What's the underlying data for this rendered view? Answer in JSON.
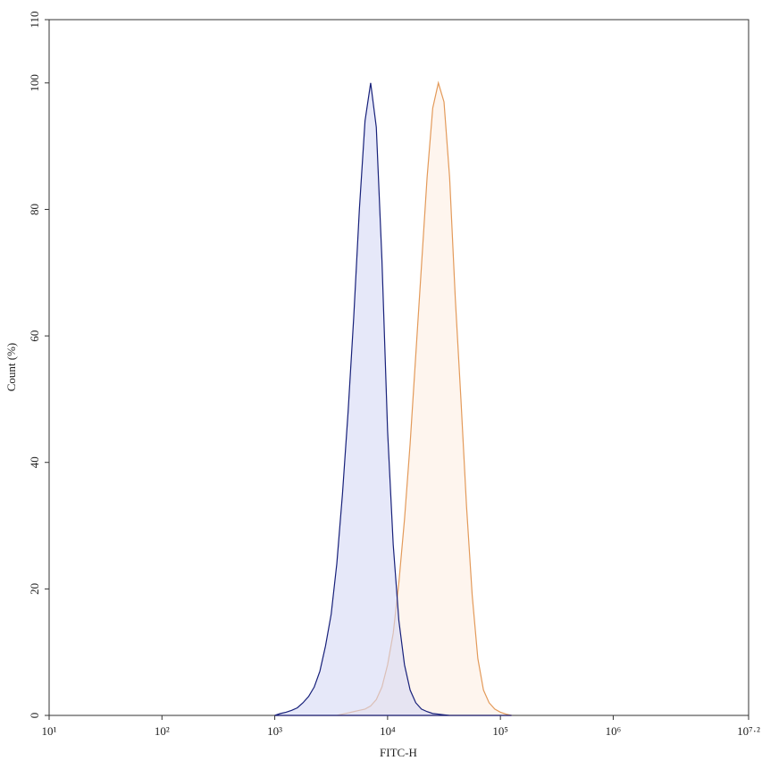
{
  "chart_data": {
    "type": "area",
    "x_label": "FITC-H",
    "y_label": "Count (%)",
    "xscale": "log",
    "x": [
      1000,
      1122,
      1259,
      1413,
      1585,
      1778,
      1995,
      2239,
      2512,
      2818,
      3162,
      3548,
      3981,
      4467,
      5012,
      5623,
      6310,
      7079,
      7943,
      8913,
      10000,
      11220,
      12589,
      14125,
      15849,
      17783,
      19953,
      22387,
      25119,
      28184,
      31623,
      35481,
      39811,
      44668,
      50119,
      56234,
      63096,
      70795,
      79433,
      89125,
      100000,
      112202,
      125893
    ],
    "series": [
      {
        "color": "#e39a5a",
        "fill": "#fdefe3",
        "values": [
          0,
          0,
          0,
          0,
          0,
          0,
          0,
          0,
          0,
          0,
          0,
          0,
          0.2,
          0.4,
          0.6,
          0.8,
          1,
          1.5,
          2.5,
          4.5,
          8,
          13,
          21,
          31,
          43,
          57,
          71,
          85,
          96,
          100,
          97,
          85,
          66,
          50,
          33,
          19,
          9,
          4,
          2,
          1,
          0.5,
          0.2,
          0
        ]
      },
      {
        "color": "#17207a",
        "fill": "#d6d8f5",
        "values": [
          0,
          0.3,
          0.5,
          0.8,
          1.2,
          2,
          3,
          4.5,
          7,
          11,
          16,
          24,
          35,
          48,
          63,
          80,
          94,
          100,
          93,
          72,
          45,
          27,
          15,
          8,
          4,
          2,
          1,
          0.6,
          0.3,
          0.2,
          0.1,
          0,
          0,
          0,
          0,
          0,
          0,
          0,
          0,
          0,
          0,
          0,
          0
        ]
      }
    ],
    "xlim": [
      10,
      15848932
    ],
    "xticks": [
      {
        "value": 10,
        "label": "10¹"
      },
      {
        "value": 100,
        "label": "10²"
      },
      {
        "value": 1000,
        "label": "10³"
      },
      {
        "value": 10000,
        "label": "10⁴"
      },
      {
        "value": 100000,
        "label": "10⁵"
      },
      {
        "value": 1000000,
        "label": "10⁶"
      },
      {
        "value": 15848932,
        "label": "10⁷·²"
      }
    ],
    "ylim": [
      0,
      110
    ],
    "yticks": [
      0,
      20,
      40,
      60,
      80,
      100,
      110
    ]
  }
}
